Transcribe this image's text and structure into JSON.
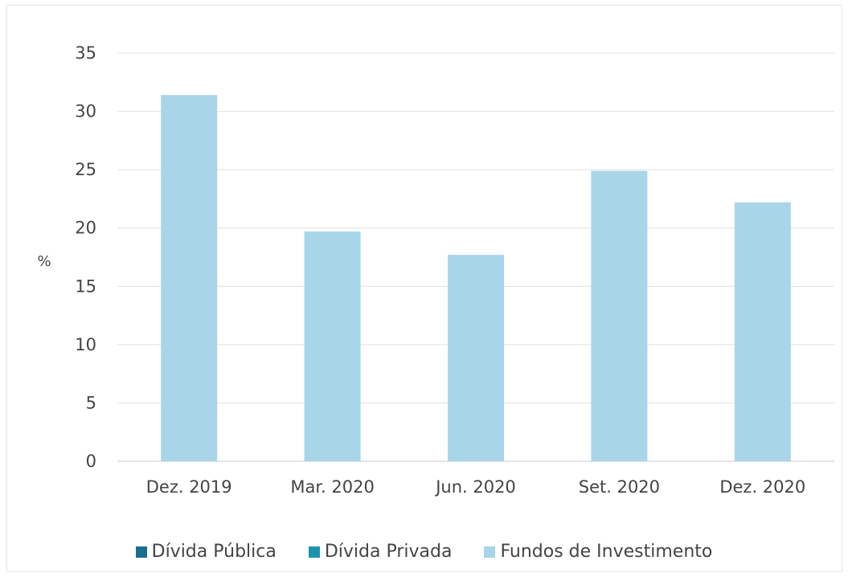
{
  "chart_data": {
    "type": "bar",
    "categories": [
      "Dez. 2019",
      "Mar. 2020",
      "Jun. 2020",
      "Set. 2020",
      "Dez. 2020"
    ],
    "series": [
      {
        "name": "Dívida Pública",
        "color": "#1a6e8c",
        "values": [
          0,
          0,
          0,
          0,
          0
        ]
      },
      {
        "name": "Dívida Privada",
        "color": "#1c93ad",
        "values": [
          0,
          0,
          0,
          0,
          0
        ]
      },
      {
        "name": "Fundos de Investimento",
        "color": "#a9d5e8",
        "values": [
          31.4,
          19.7,
          17.7,
          24.9,
          22.2
        ]
      }
    ],
    "title": "",
    "xlabel": "",
    "ylabel": "%",
    "ylim": [
      0,
      35
    ],
    "yticks": [
      0,
      5,
      10,
      15,
      20,
      25,
      30,
      35
    ],
    "grid": true,
    "legend": "bottom"
  }
}
